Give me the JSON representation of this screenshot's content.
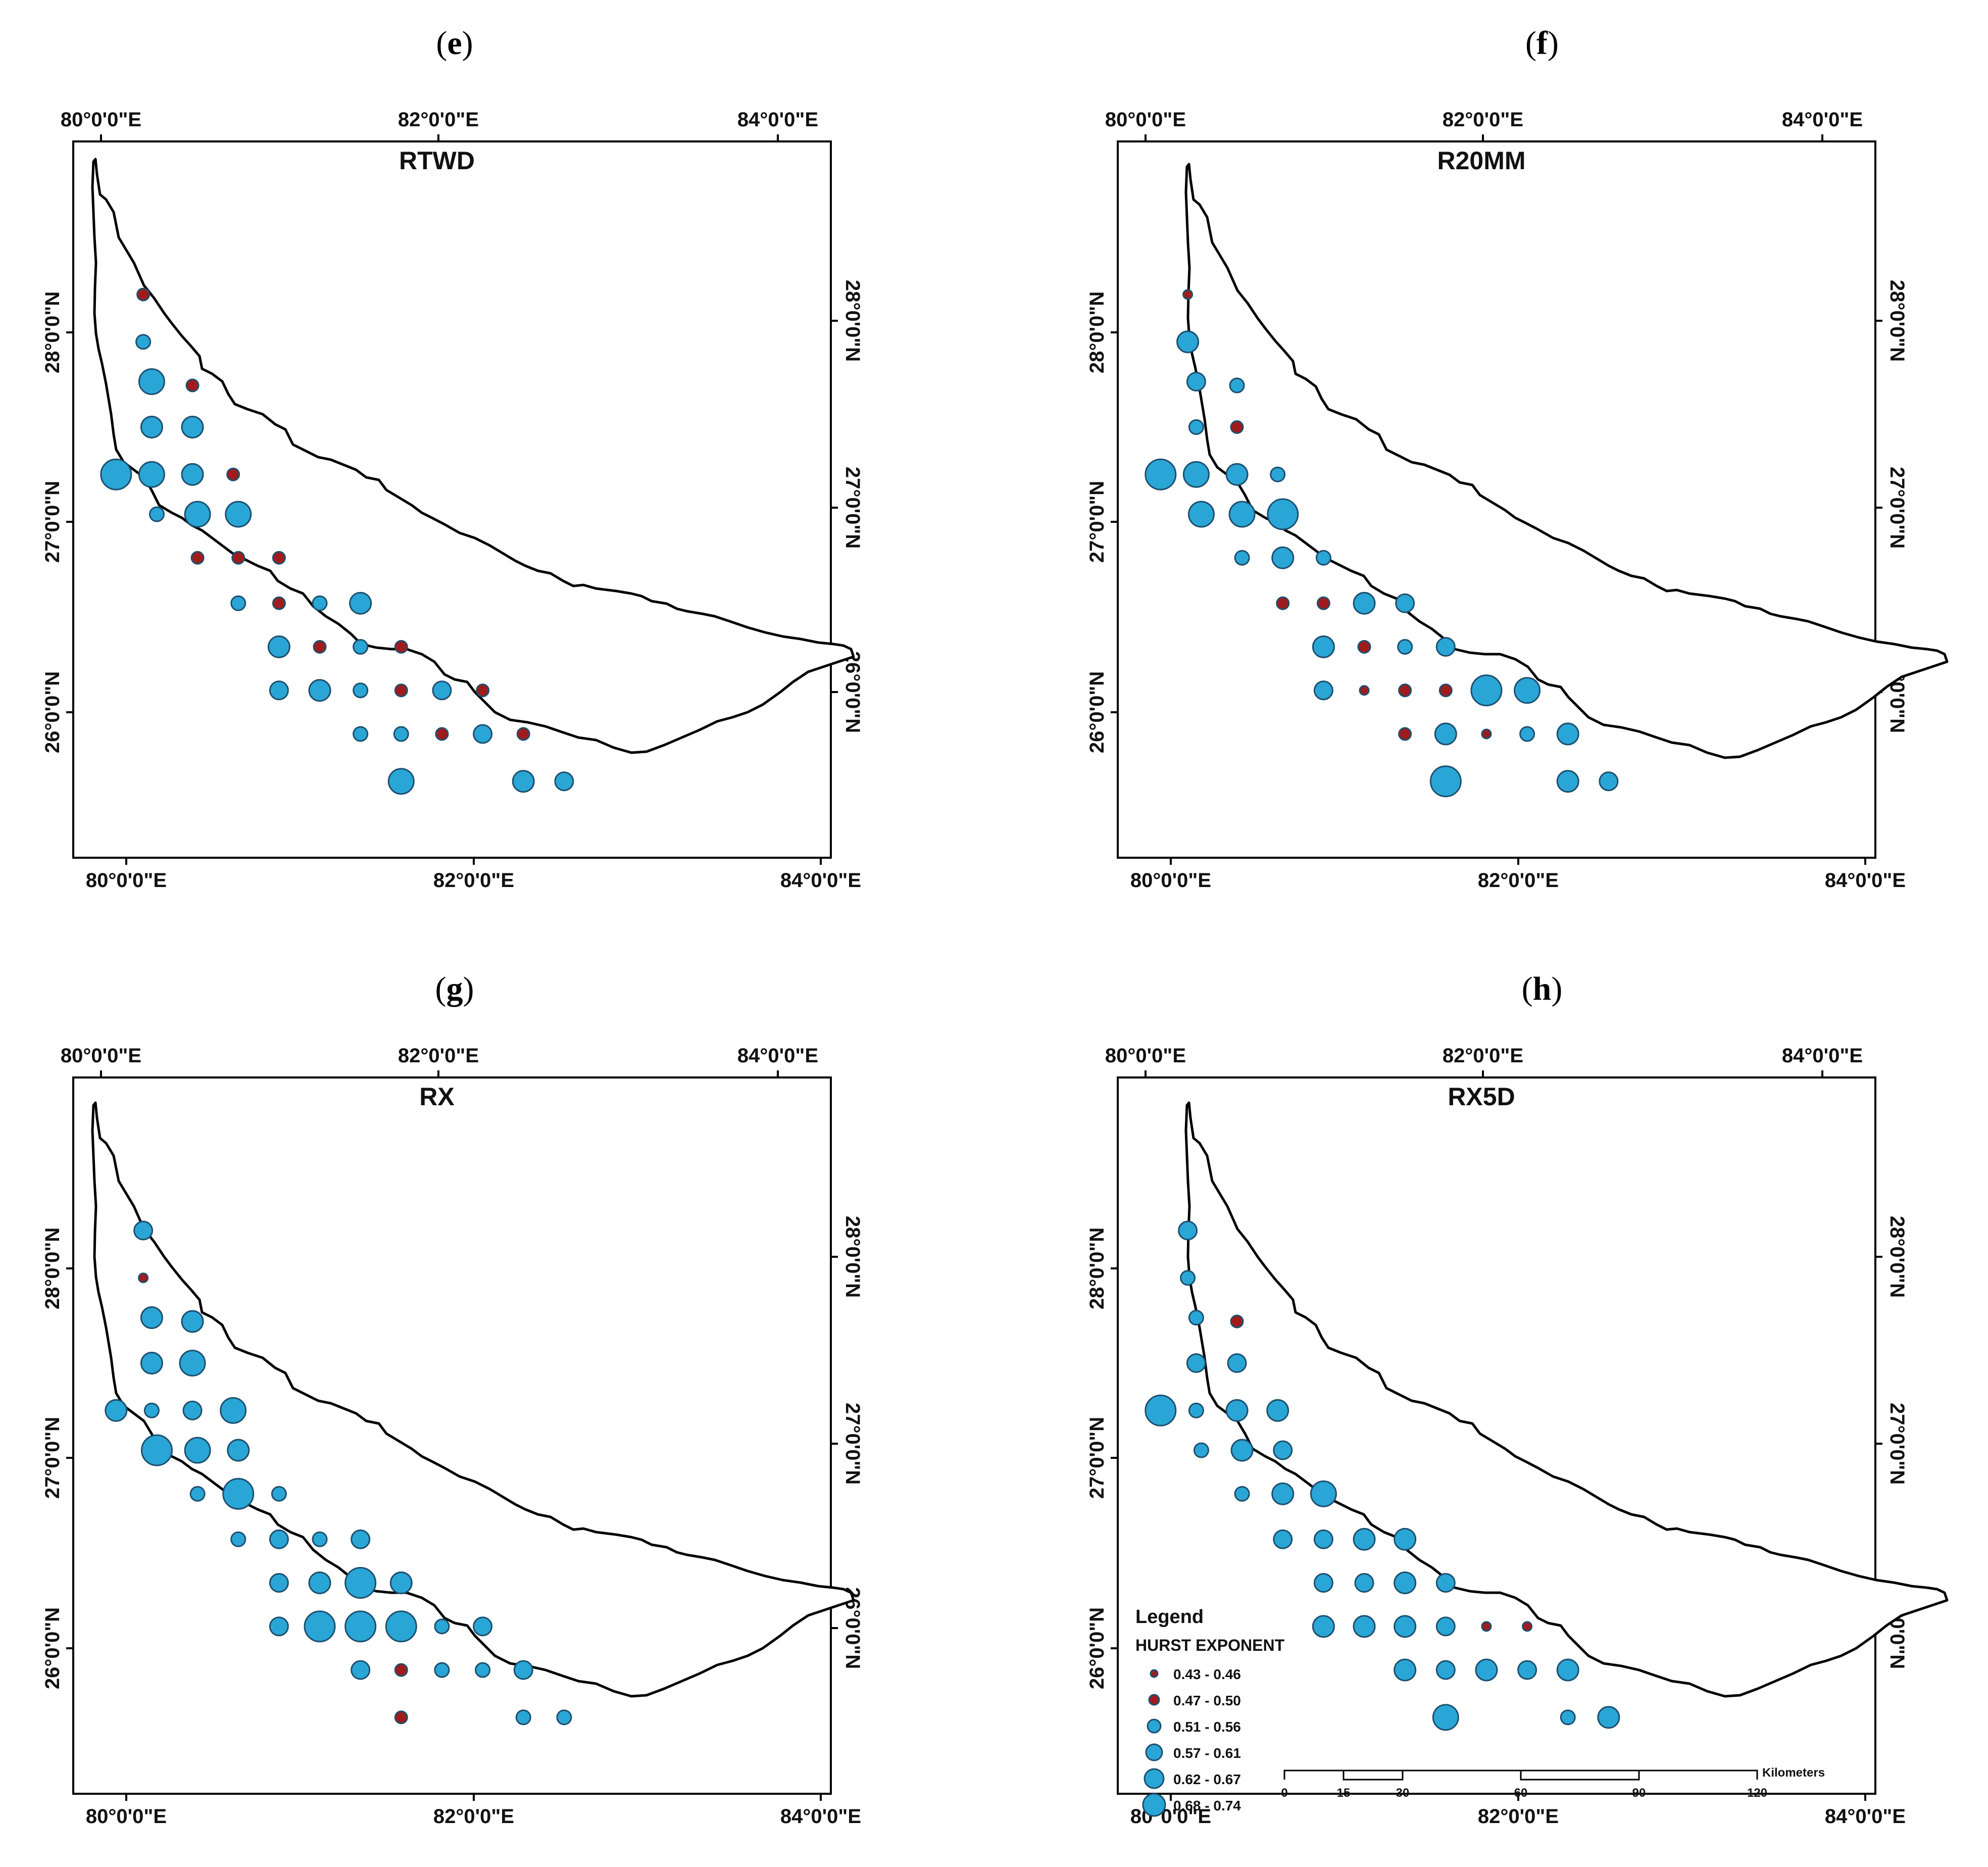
{
  "panels": [
    {
      "letter": "e",
      "title": "RTWD",
      "points": [
        [
          0.1,
          1.2,
          1
        ],
        [
          0.1,
          0.95,
          2
        ],
        [
          0.15,
          0.74,
          5
        ],
        [
          0.39,
          0.72,
          1
        ],
        [
          0.15,
          0.5,
          4
        ],
        [
          0.39,
          0.5,
          4
        ],
        [
          -0.06,
          0.25,
          6
        ],
        [
          0.15,
          0.25,
          5
        ],
        [
          0.39,
          0.25,
          4
        ],
        [
          0.63,
          0.25,
          1
        ],
        [
          0.18,
          0.04,
          2
        ],
        [
          0.42,
          0.04,
          5
        ],
        [
          0.66,
          0.04,
          5
        ],
        [
          0.42,
          -0.19,
          1
        ],
        [
          0.66,
          -0.19,
          1
        ],
        [
          0.9,
          -0.19,
          1
        ],
        [
          0.66,
          -0.43,
          2
        ],
        [
          0.9,
          -0.43,
          1
        ],
        [
          1.14,
          -0.43,
          2
        ],
        [
          1.38,
          -0.43,
          4
        ],
        [
          0.9,
          -0.66,
          4
        ],
        [
          1.14,
          -0.66,
          1
        ],
        [
          1.38,
          -0.66,
          2
        ],
        [
          1.62,
          -0.66,
          1
        ],
        [
          0.9,
          -0.89,
          3
        ],
        [
          1.14,
          -0.89,
          4
        ],
        [
          1.38,
          -0.89,
          2
        ],
        [
          1.62,
          -0.89,
          1
        ],
        [
          1.86,
          -0.89,
          3
        ],
        [
          2.1,
          -0.89,
          1
        ],
        [
          1.38,
          -1.12,
          2
        ],
        [
          1.62,
          -1.12,
          2
        ],
        [
          1.86,
          -1.12,
          1
        ],
        [
          2.1,
          -1.12,
          3
        ],
        [
          2.34,
          -1.12,
          1
        ],
        [
          1.62,
          -1.37,
          5
        ],
        [
          2.34,
          -1.37,
          4
        ],
        [
          2.58,
          -1.37,
          3
        ]
      ]
    },
    {
      "letter": "f",
      "title": "R20MM",
      "points": [
        [
          0.1,
          1.2,
          0
        ],
        [
          0.1,
          0.95,
          4
        ],
        [
          0.15,
          0.74,
          3
        ],
        [
          0.39,
          0.72,
          2
        ],
        [
          0.15,
          0.5,
          2
        ],
        [
          0.39,
          0.5,
          1
        ],
        [
          -0.06,
          0.25,
          6
        ],
        [
          0.15,
          0.25,
          5
        ],
        [
          0.39,
          0.25,
          4
        ],
        [
          0.63,
          0.25,
          2
        ],
        [
          0.18,
          0.04,
          5
        ],
        [
          0.42,
          0.04,
          5
        ],
        [
          0.66,
          0.04,
          6
        ],
        [
          0.42,
          -0.19,
          2
        ],
        [
          0.66,
          -0.19,
          4
        ],
        [
          0.9,
          -0.19,
          2
        ],
        [
          0.66,
          -0.43,
          1
        ],
        [
          0.9,
          -0.43,
          1
        ],
        [
          1.14,
          -0.43,
          4
        ],
        [
          1.38,
          -0.43,
          3
        ],
        [
          0.9,
          -0.66,
          4
        ],
        [
          1.14,
          -0.66,
          1
        ],
        [
          1.38,
          -0.66,
          2
        ],
        [
          1.62,
          -0.66,
          3
        ],
        [
          0.9,
          -0.89,
          3
        ],
        [
          1.14,
          -0.89,
          0
        ],
        [
          1.38,
          -0.89,
          1
        ],
        [
          1.62,
          -0.89,
          1
        ],
        [
          1.86,
          -0.89,
          6
        ],
        [
          2.1,
          -0.89,
          5
        ],
        [
          1.38,
          -1.12,
          1
        ],
        [
          1.62,
          -1.12,
          4
        ],
        [
          1.86,
          -1.12,
          0
        ],
        [
          2.1,
          -1.12,
          2
        ],
        [
          2.34,
          -1.12,
          4
        ],
        [
          1.62,
          -1.37,
          6
        ],
        [
          2.34,
          -1.37,
          4
        ],
        [
          2.58,
          -1.37,
          3
        ]
      ]
    },
    {
      "letter": "g",
      "title": "RX",
      "points": [
        [
          0.1,
          1.2,
          3
        ],
        [
          0.1,
          0.95,
          0
        ],
        [
          0.15,
          0.74,
          4
        ],
        [
          0.39,
          0.72,
          4
        ],
        [
          0.15,
          0.5,
          4
        ],
        [
          0.39,
          0.5,
          5
        ],
        [
          -0.06,
          0.25,
          4
        ],
        [
          0.15,
          0.25,
          2
        ],
        [
          0.39,
          0.25,
          3
        ],
        [
          0.63,
          0.25,
          5
        ],
        [
          0.18,
          0.04,
          6
        ],
        [
          0.42,
          0.04,
          5
        ],
        [
          0.66,
          0.04,
          4
        ],
        [
          0.42,
          -0.19,
          2
        ],
        [
          0.66,
          -0.19,
          6
        ],
        [
          0.9,
          -0.19,
          2
        ],
        [
          0.66,
          -0.43,
          2
        ],
        [
          0.9,
          -0.43,
          3
        ],
        [
          1.14,
          -0.43,
          2
        ],
        [
          1.38,
          -0.43,
          3
        ],
        [
          0.9,
          -0.66,
          3
        ],
        [
          1.14,
          -0.66,
          4
        ],
        [
          1.38,
          -0.66,
          6
        ],
        [
          1.62,
          -0.66,
          4
        ],
        [
          0.9,
          -0.89,
          3
        ],
        [
          1.14,
          -0.89,
          6
        ],
        [
          1.38,
          -0.89,
          6
        ],
        [
          1.62,
          -0.89,
          6
        ],
        [
          1.86,
          -0.89,
          2
        ],
        [
          2.1,
          -0.89,
          3
        ],
        [
          1.38,
          -1.12,
          3
        ],
        [
          1.62,
          -1.12,
          1
        ],
        [
          1.86,
          -1.12,
          2
        ],
        [
          2.1,
          -1.12,
          2
        ],
        [
          2.34,
          -1.12,
          3
        ],
        [
          1.62,
          -1.37,
          1
        ],
        [
          2.34,
          -1.37,
          2
        ],
        [
          2.58,
          -1.37,
          2
        ]
      ]
    },
    {
      "letter": "h",
      "title": "RX5D",
      "points": [
        [
          0.1,
          1.2,
          3
        ],
        [
          0.1,
          0.95,
          2
        ],
        [
          0.15,
          0.74,
          2
        ],
        [
          0.39,
          0.72,
          1
        ],
        [
          0.15,
          0.5,
          3
        ],
        [
          0.39,
          0.5,
          3
        ],
        [
          -0.06,
          0.25,
          6
        ],
        [
          0.15,
          0.25,
          2
        ],
        [
          0.39,
          0.25,
          4
        ],
        [
          0.63,
          0.25,
          4
        ],
        [
          0.18,
          0.04,
          2
        ],
        [
          0.42,
          0.04,
          4
        ],
        [
          0.66,
          0.04,
          3
        ],
        [
          0.42,
          -0.19,
          2
        ],
        [
          0.66,
          -0.19,
          4
        ],
        [
          0.9,
          -0.19,
          5
        ],
        [
          0.66,
          -0.43,
          3
        ],
        [
          0.9,
          -0.43,
          3
        ],
        [
          1.14,
          -0.43,
          4
        ],
        [
          1.38,
          -0.43,
          4
        ],
        [
          0.9,
          -0.66,
          3
        ],
        [
          1.14,
          -0.66,
          3
        ],
        [
          1.38,
          -0.66,
          4
        ],
        [
          1.62,
          -0.66,
          3
        ],
        [
          0.9,
          -0.89,
          4
        ],
        [
          1.14,
          -0.89,
          4
        ],
        [
          1.38,
          -0.89,
          4
        ],
        [
          1.62,
          -0.89,
          3
        ],
        [
          1.86,
          -0.89,
          0
        ],
        [
          2.1,
          -0.89,
          0
        ],
        [
          1.38,
          -1.12,
          4
        ],
        [
          1.62,
          -1.12,
          3
        ],
        [
          1.86,
          -1.12,
          4
        ],
        [
          2.1,
          -1.12,
          3
        ],
        [
          2.34,
          -1.12,
          4
        ],
        [
          1.62,
          -1.37,
          5
        ],
        [
          2.34,
          -1.37,
          2
        ],
        [
          2.58,
          -1.37,
          4
        ]
      ]
    }
  ],
  "axis_labels": {
    "lon": [
      "80°0'0\"E",
      "82°0'0\"E",
      "84°0'0\"E"
    ],
    "lat": [
      "26°0'0\"N",
      "27°0'0\"N",
      "28°0'0\"N"
    ]
  },
  "legend": {
    "title": "Legend",
    "subtitle": "HURST EXPONENT",
    "classes": [
      {
        "label": "0.43 - 0.46",
        "color": "#a01c1c"
      },
      {
        "label": "0.47 - 0.50",
        "color": "#a01c1c"
      },
      {
        "label": "0.51 - 0.56",
        "color": "#2aa6d6"
      },
      {
        "label": "0.57 - 0.61",
        "color": "#2aa6d6"
      },
      {
        "label": "0.62 - 0.67",
        "color": "#2aa6d6"
      },
      {
        "label": "0.68 - 0.74",
        "color": "#2aa6d6"
      }
    ],
    "scale_numbers": [
      "0",
      "15",
      "30",
      "60",
      "90",
      "120"
    ],
    "scale_unit": "Kilometers"
  },
  "colors": {
    "frame": "#000000",
    "outline": "#000000",
    "dot_stroke": "#1d4f6e"
  }
}
